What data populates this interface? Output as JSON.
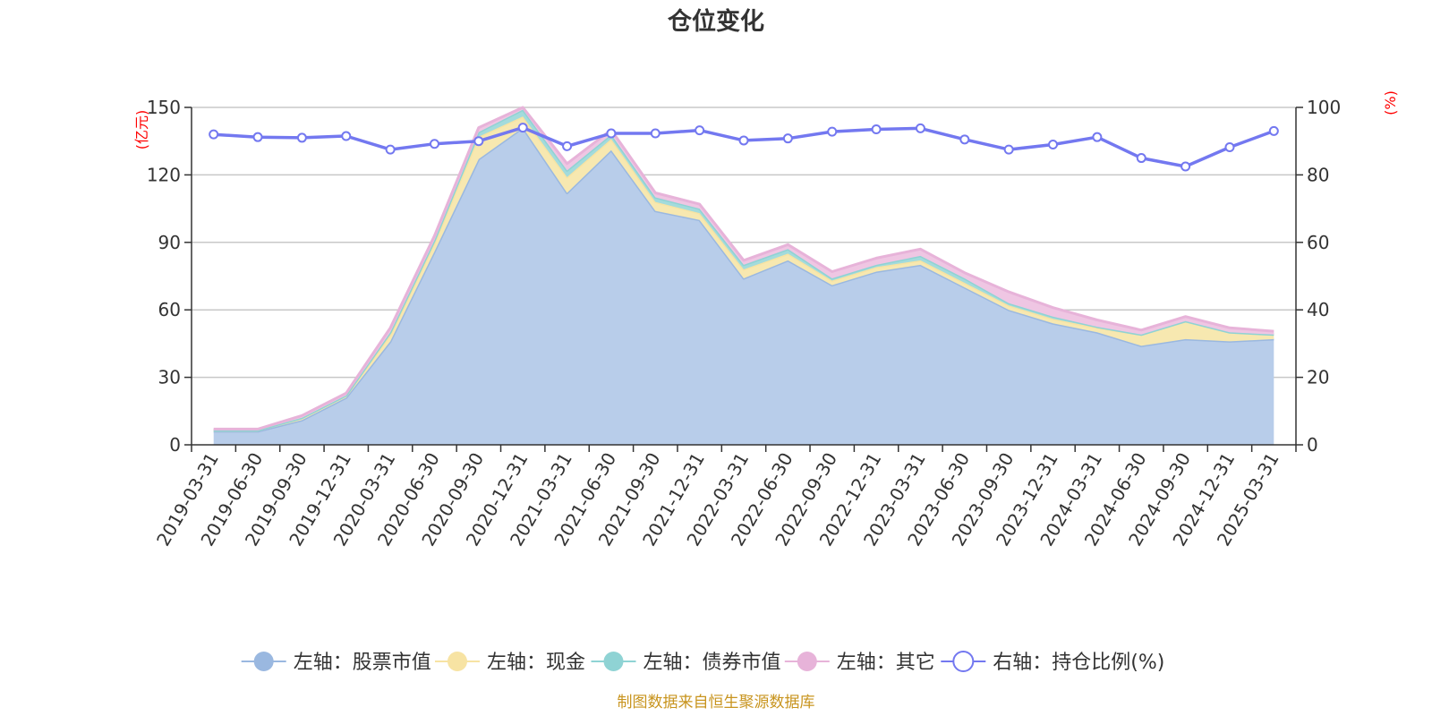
{
  "chart_data": {
    "type": "area",
    "title": "仓位变化",
    "left_unit": "(亿元)",
    "right_unit": "(%)",
    "left_ylim": [
      0,
      150
    ],
    "left_ticks": [
      0,
      30,
      60,
      90,
      120,
      150
    ],
    "right_ylim": [
      0,
      100
    ],
    "right_ticks": [
      0,
      20,
      40,
      60,
      80,
      100
    ],
    "grid": true,
    "legend_position": "bottom",
    "categories": [
      "2019-03-31",
      "2019-06-30",
      "2019-09-30",
      "2019-12-31",
      "2020-03-31",
      "2020-06-30",
      "2020-09-30",
      "2020-12-31",
      "2021-03-31",
      "2021-06-30",
      "2021-09-30",
      "2021-12-31",
      "2022-03-31",
      "2022-06-30",
      "2022-09-30",
      "2022-12-31",
      "2023-03-31",
      "2023-06-30",
      "2023-09-30",
      "2023-12-31",
      "2024-03-31",
      "2024-06-30",
      "2024-09-30",
      "2024-12-31",
      "2025-03-31"
    ],
    "series": [
      {
        "name": "左轴：股票市值",
        "axis": "left",
        "stack": "total",
        "color": "#9ab8e0",
        "fill": "#b8cdea",
        "values": [
          6,
          6,
          11,
          21,
          46,
          86,
          127,
          141,
          112,
          131,
          104,
          100,
          74,
          82,
          71,
          77,
          80,
          70,
          60,
          54,
          50,
          44,
          47,
          46,
          47
        ]
      },
      {
        "name": "左轴：现金",
        "axis": "left",
        "stack": "total",
        "color": "#f7e3a3",
        "fill": "#f7e8b0",
        "values": [
          0.5,
          0.5,
          1,
          1,
          3,
          4,
          10,
          5,
          7,
          5,
          4,
          3,
          4,
          3,
          2,
          2,
          2,
          2,
          2,
          2,
          2,
          5,
          8,
          4,
          2
        ]
      },
      {
        "name": "左轴：债券市值",
        "axis": "left",
        "stack": "total",
        "color": "#8fd3d4",
        "fill": "#a3dbdc",
        "values": [
          0,
          0,
          0,
          0,
          1,
          1,
          2,
          3,
          3,
          2,
          2,
          2,
          2,
          2,
          1,
          1,
          2,
          2,
          1,
          1,
          0.5,
          0,
          0,
          0,
          0
        ]
      },
      {
        "name": "左轴：其它",
        "axis": "left",
        "stack": "total",
        "color": "#e7b3d9",
        "fill": "#efc6e3",
        "values": [
          0.5,
          0.5,
          1,
          1,
          2,
          2,
          2,
          1,
          3,
          2,
          2,
          2,
          2,
          2,
          3,
          3,
          3,
          2.5,
          5,
          4,
          3,
          2,
          2,
          2,
          1.5
        ]
      },
      {
        "name": "右轴：持仓比例(%)",
        "axis": "right",
        "type": "line",
        "color": "#7378f0",
        "values": [
          92,
          91.2,
          91,
          91.5,
          87.5,
          89.2,
          90,
          94,
          88.5,
          92.3,
          92.3,
          93.2,
          90.2,
          90.8,
          92.8,
          93.5,
          93.8,
          90.5,
          87.5,
          89,
          91.2,
          85,
          82.5,
          88.2,
          93
        ]
      }
    ]
  },
  "legend": [
    {
      "label": "左轴：股票市值",
      "marker": "filled-circle",
      "color": "#9ab8e0"
    },
    {
      "label": "左轴：现金",
      "marker": "filled-circle",
      "color": "#f7e3a3"
    },
    {
      "label": "左轴：债券市值",
      "marker": "filled-circle",
      "color": "#8fd3d4"
    },
    {
      "label": "左轴：其它",
      "marker": "filled-circle",
      "color": "#e7b3d9"
    },
    {
      "label": "右轴：持仓比例(%)",
      "marker": "hollow-circle",
      "color": "#7378f0"
    }
  ],
  "source_note": "制图数据来自恒生聚源数据库"
}
